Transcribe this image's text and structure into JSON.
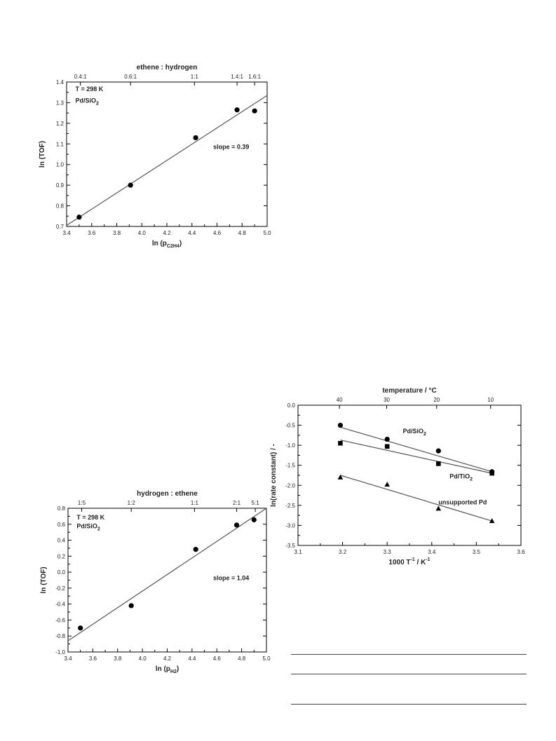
{
  "charts": [
    {
      "id": "c1",
      "type": "scatter",
      "xlabel": "ln (p",
      "xlabel_sub": "C2H4",
      "xlabel_close": ")",
      "ylabel": "ln (TOF)",
      "top_label": "ethene : hydrogen",
      "xlim": [
        3.4,
        5.0
      ],
      "ylim": [
        0.7,
        1.4
      ],
      "xticks": [
        "3.4",
        "3.6",
        "3.8",
        "4.0",
        "4.2",
        "4.4",
        "4.6",
        "4.8",
        "5.0"
      ],
      "yticks": [
        "0.7",
        "0.8",
        "0.9",
        "1.0",
        "1.1",
        "1.2",
        "1.3",
        "1.4"
      ],
      "top_ticks": [
        {
          "x": 3.51,
          "label": "0.4:1"
        },
        {
          "x": 3.91,
          "label": "0.6:1"
        },
        {
          "x": 4.42,
          "label": "1:1"
        },
        {
          "x": 4.76,
          "label": "1.4:1"
        },
        {
          "x": 4.9,
          "label": "1.6:1"
        }
      ],
      "annotations": [
        {
          "text": "T = 298 K",
          "x": 3.47,
          "y": 1.355
        },
        {
          "text": "Pd/SiO",
          "sub": "2",
          "x": 3.47,
          "y": 1.3
        },
        {
          "text": "slope = 0.39",
          "x": 4.57,
          "y": 1.075
        }
      ],
      "series": [
        {
          "marker": "circle",
          "x": [
            3.5,
            3.91,
            4.43,
            4.76,
            4.9
          ],
          "y": [
            0.745,
            0.9,
            1.13,
            1.265,
            1.26
          ],
          "fit": {
            "x": [
              3.4,
              5.0
            ],
            "y": [
              0.705,
              1.335
            ]
          }
        }
      ]
    },
    {
      "id": "c2",
      "type": "scatter",
      "xlabel": "ln (p",
      "xlabel_sub": "H2",
      "xlabel_close": ")",
      "ylabel": "ln (TOF)",
      "top_label": "hydrogen : ethene",
      "xlim": [
        3.4,
        5.0
      ],
      "ylim": [
        -1.0,
        0.8
      ],
      "xticks": [
        "3.4",
        "3.6",
        "3.8",
        "4.0",
        "4.2",
        "4.4",
        "4.6",
        "4.8",
        "5.0"
      ],
      "yticks": [
        "-1.0",
        "-0.8",
        "-0.6",
        "-0.4",
        "-0.2",
        "0.0",
        "0.2",
        "0.4",
        "0.6",
        "0.8"
      ],
      "top_ticks": [
        {
          "x": 3.51,
          "label": "1:5"
        },
        {
          "x": 3.91,
          "label": "1:2"
        },
        {
          "x": 4.42,
          "label": "1:1"
        },
        {
          "x": 4.76,
          "label": "2:1"
        },
        {
          "x": 4.91,
          "label": "5:1"
        }
      ],
      "annotations": [
        {
          "text": "T = 298 K",
          "x": 3.47,
          "y": 0.66
        },
        {
          "text": "Pd/SiO",
          "sub": "2",
          "x": 3.47,
          "y": 0.55
        },
        {
          "text": "slope = 1.04",
          "x": 4.57,
          "y": -0.1
        }
      ],
      "series": [
        {
          "marker": "circle",
          "x": [
            3.5,
            3.91,
            4.43,
            4.76,
            4.9
          ],
          "y": [
            -0.7,
            -0.42,
            0.285,
            0.59,
            0.655
          ],
          "fit": {
            "x": [
              3.4,
              5.0
            ],
            "y": [
              -0.86,
              0.8
            ]
          }
        }
      ]
    },
    {
      "id": "c3",
      "type": "scatter",
      "xlabel": "1000 T",
      "xlabel_sup": "-1",
      "xlabel_unit": " / K",
      "xlabel_unit_sup": "-1",
      "ylabel": "ln(rate constant) / -",
      "top_label": "temperature / °C",
      "xlim": [
        3.1,
        3.6
      ],
      "ylim": [
        -3.5,
        0.0
      ],
      "xticks": [
        "3.1",
        "3.2",
        "3.3",
        "3.4",
        "3.5",
        "3.6"
      ],
      "yticks": [
        "-3.5",
        "-3.0",
        "-2.5",
        "-2.0",
        "-1.5",
        "-1.0",
        "-0.5",
        "0.0"
      ],
      "top_ticks": [
        {
          "x": 3.193,
          "label": "40"
        },
        {
          "x": 3.299,
          "label": "30"
        },
        {
          "x": 3.411,
          "label": "20"
        },
        {
          "x": 3.532,
          "label": "10"
        }
      ],
      "annotations": [
        {
          "text": "Pd/SiO",
          "sub": "2",
          "x": 3.335,
          "y": -0.7
        },
        {
          "text": "Pd/TiO",
          "sub": "2",
          "x": 3.44,
          "y": -1.83
        },
        {
          "text": "unsupported Pd",
          "x": 3.415,
          "y": -2.48
        }
      ],
      "series": [
        {
          "name": "Pd/SiO2",
          "marker": "circle",
          "x": [
            3.195,
            3.3,
            3.415,
            3.535
          ],
          "y": [
            -0.5,
            -0.85,
            -1.14,
            -1.66
          ],
          "fit": {
            "x": [
              3.195,
              3.535
            ],
            "y": [
              -0.55,
              -1.66
            ]
          }
        },
        {
          "name": "Pd/TiO2",
          "marker": "square",
          "x": [
            3.195,
            3.3,
            3.415,
            3.535
          ],
          "y": [
            -0.95,
            -1.03,
            -1.46,
            -1.7
          ],
          "fit": {
            "x": [
              3.195,
              3.535
            ],
            "y": [
              -0.87,
              -1.7
            ]
          }
        },
        {
          "name": "unsupported Pd",
          "marker": "triangle",
          "x": [
            3.195,
            3.3,
            3.415,
            3.535
          ],
          "y": [
            -1.8,
            -1.98,
            -2.58,
            -2.89
          ],
          "fit": {
            "x": [
              3.195,
              3.535
            ],
            "y": [
              -1.75,
              -2.89
            ]
          }
        }
      ]
    }
  ]
}
